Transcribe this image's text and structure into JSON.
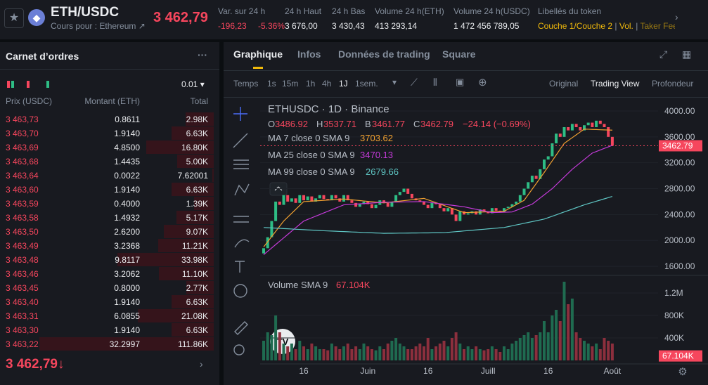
{
  "header": {
    "pair": "ETH/USDC",
    "subtitle": "Cours pour : Ethereum ↗",
    "price": "3 462,79",
    "stats": [
      {
        "label": "Var. sur 24 h",
        "value": "-196,23",
        "extra": "-5.36%"
      },
      {
        "label": "24 h Haut",
        "value": "3 676,00"
      },
      {
        "label": "24 h Bas",
        "value": "3 430,43"
      },
      {
        "label": "Volume 24 h(ETH)",
        "value": "413 293,14"
      },
      {
        "label": "Volume 24 h(USDC)",
        "value": "1 472 456 789,05"
      }
    ],
    "token_label": "Libellés du token",
    "tokens": [
      "Couche 1/Couche 2",
      "Vol.",
      "Taker Fee"
    ]
  },
  "order_book": {
    "title": "Carnet d’ordres",
    "tick_size": "0.01",
    "columns": [
      "Prix (USDC)",
      "Montant (ETH)",
      "Total"
    ],
    "rows": [
      [
        "3 463,73",
        "0.8611",
        "2.98K"
      ],
      [
        "3 463,70",
        "1.9140",
        "6.63K"
      ],
      [
        "3 463,69",
        "4.8500",
        "16.80K"
      ],
      [
        "3 463,68",
        "1.4435",
        "5.00K"
      ],
      [
        "3 463,64",
        "0.0022",
        "7.62001"
      ],
      [
        "3 463,60",
        "1.9140",
        "6.63K"
      ],
      [
        "3 463,59",
        "0.4000",
        "1.39K"
      ],
      [
        "3 463,58",
        "1.4932",
        "5.17K"
      ],
      [
        "3 463,50",
        "2.6200",
        "9.07K"
      ],
      [
        "3 463,49",
        "3.2368",
        "11.21K"
      ],
      [
        "3 463,48",
        "9.8117",
        "33.98K"
      ],
      [
        "3 463,46",
        "3.2062",
        "11.10K"
      ],
      [
        "3 463,45",
        "0.8000",
        "2.77K"
      ],
      [
        "3 463,40",
        "1.9140",
        "6.63K"
      ],
      [
        "3 463,31",
        "6.0855",
        "21.08K"
      ],
      [
        "3 463,30",
        "1.9140",
        "6.63K"
      ],
      [
        "3 463,22",
        "32.2997",
        "111.86K"
      ]
    ],
    "last_price": "3 462,79↓"
  },
  "tabs": [
    "Graphique",
    "Infos",
    "Données de trading",
    "Square"
  ],
  "toolbar": {
    "time_label": "Temps",
    "intervals": [
      "1s",
      "15m",
      "1h",
      "4h",
      "1J",
      "1sem."
    ],
    "views": [
      "Original",
      "Trading View",
      "Profondeur"
    ]
  },
  "chart_data": {
    "type": "candlestick",
    "title": "ETHUSDC · 1D · Binance",
    "ohlc_legend": [
      {
        "label": "O",
        "value": "3486.92"
      },
      {
        "label": "H",
        "value": "3537.71"
      },
      {
        "label": "B",
        "value": "3461.77"
      },
      {
        "label": "C",
        "value": "3462.79"
      }
    ],
    "change_label": "−24.14 (−0.69%)",
    "up_color": "#2ebd85",
    "down_color": "#f6465d",
    "volume_up_color": "#1f6b50",
    "volume_down_color": "#8c2f3d",
    "categories": [
      null,
      null,
      null,
      null,
      null,
      null,
      null,
      null,
      null,
      null,
      "16",
      null,
      null,
      null,
      null,
      null,
      null,
      null,
      null,
      null,
      null,
      null,
      null,
      null,
      null,
      null,
      "Juin",
      null,
      null,
      null,
      null,
      null,
      null,
      null,
      null,
      null,
      null,
      null,
      null,
      null,
      null,
      "16",
      null,
      null,
      null,
      null,
      null,
      null,
      null,
      null,
      null,
      null,
      null,
      null,
      null,
      null,
      "Juill",
      null,
      null,
      null,
      null,
      null,
      null,
      null,
      null,
      null,
      null,
      null,
      null,
      null,
      null,
      "16",
      null,
      null,
      null,
      null,
      null,
      null,
      null,
      null,
      null,
      null,
      null,
      null,
      null,
      null,
      null,
      "Août"
    ],
    "open": [
      1800,
      1880,
      2050,
      2300,
      2600,
      2550,
      2700,
      2600,
      2650,
      2580,
      2700,
      2620,
      2680,
      2600,
      2650,
      2700,
      2640,
      2620,
      2700,
      2650,
      2600,
      2700,
      2620,
      2580,
      2520,
      2560,
      2600,
      2560,
      2500,
      2550,
      2620,
      2580,
      2520,
      2600,
      2700,
      2750,
      2800,
      2720,
      2650,
      2620,
      2600,
      2550,
      2500,
      2580,
      2560,
      2500,
      2450,
      2500,
      2400,
      2300,
      2450,
      2400,
      2420,
      2450,
      2400,
      2480,
      2450,
      2420,
      2500,
      2460,
      2440,
      2500,
      2520,
      2560,
      2600,
      2700,
      2800,
      2900,
      3000,
      2950,
      3100,
      3250,
      3300,
      3500,
      3650,
      3600,
      3750,
      3700,
      3800,
      3750,
      3700,
      3780,
      3820,
      3750,
      3850,
      3800,
      3750,
      3600
    ],
    "close": [
      1880,
      2050,
      2300,
      2600,
      2550,
      2700,
      2600,
      2650,
      2580,
      2700,
      2620,
      2680,
      2600,
      2650,
      2700,
      2640,
      2620,
      2700,
      2650,
      2600,
      2700,
      2620,
      2580,
      2520,
      2560,
      2600,
      2560,
      2500,
      2550,
      2620,
      2580,
      2520,
      2600,
      2700,
      2750,
      2800,
      2720,
      2650,
      2620,
      2600,
      2550,
      2500,
      2580,
      2560,
      2500,
      2450,
      2500,
      2400,
      2300,
      2450,
      2400,
      2420,
      2450,
      2400,
      2480,
      2450,
      2420,
      2500,
      2460,
      2440,
      2500,
      2520,
      2560,
      2600,
      2700,
      2800,
      2900,
      3000,
      2950,
      3100,
      3250,
      3300,
      3500,
      3650,
      3600,
      3750,
      3700,
      3800,
      3750,
      3700,
      3780,
      3820,
      3750,
      3850,
      3800,
      3750,
      3600,
      3463
    ],
    "volume": [
      350000,
      500000,
      450000,
      800000,
      500000,
      300000,
      250000,
      300000,
      200000,
      350000,
      250000,
      200000,
      300000,
      250000,
      200000,
      200000,
      180000,
      300000,
      250000,
      200000,
      250000,
      300000,
      200000,
      250000,
      200000,
      300000,
      250000,
      200000,
      180000,
      250000,
      200000,
      300000,
      350000,
      400000,
      300000,
      250000,
      200000,
      200000,
      250000,
      300000,
      250000,
      400000,
      200000,
      250000,
      300000,
      350000,
      250000,
      400000,
      500000,
      300000,
      200000,
      250000,
      200000,
      250000,
      200000,
      180000,
      200000,
      250000,
      200000,
      150000,
      250000,
      200000,
      300000,
      350000,
      400000,
      450000,
      500000,
      400000,
      450000,
      500000,
      700000,
      500000,
      800000,
      900000,
      700000,
      1400000,
      1000000,
      1100000,
      500000,
      400000,
      350000,
      300000,
      250000,
      300000,
      200000,
      400000,
      350000,
      300000
    ],
    "series": [
      {
        "name": "MA 7 close 0 SMA 9",
        "legend_value": "3703.62",
        "color": "#f0a030",
        "values": [
          1900,
          1980,
          2060,
          2140,
          2220,
          2300,
          2360,
          2420,
          2480,
          2540,
          2600,
          2604,
          2608,
          2612,
          2616,
          2620,
          2624,
          2628,
          2632,
          2636,
          2640,
          2634,
          2628,
          2622,
          2616,
          2610,
          2604,
          2598,
          2592,
          2586,
          2580,
          2587,
          2594,
          2601,
          2608,
          2615,
          2622,
          2629,
          2636,
          2643,
          2650,
          2628,
          2606,
          2584,
          2562,
          2540,
          2518,
          2496,
          2474,
          2452,
          2430,
          2432,
          2434,
          2436,
          2438,
          2440,
          2442,
          2444,
          2446,
          2448,
          2450,
          2484,
          2518,
          2552,
          2586,
          2620,
          2706,
          2792,
          2878,
          2964,
          3050,
          3140,
          3230,
          3320,
          3410,
          3500,
          3544,
          3588,
          3632,
          3676,
          3720,
          3718,
          3715,
          3713,
          3710,
          3708,
          3706,
          3704
        ]
      },
      {
        "name": "MA 25 close 0 SMA 9",
        "legend_value": "3470.13",
        "color": "#c33ad8",
        "values": [
          1780,
          1832,
          1884,
          1936,
          1988,
          2040,
          2092,
          2144,
          2196,
          2248,
          2300,
          2325,
          2350,
          2375,
          2400,
          2425,
          2450,
          2475,
          2500,
          2525,
          2550,
          2554,
          2558,
          2562,
          2566,
          2570,
          2574,
          2578,
          2582,
          2586,
          2590,
          2591,
          2592,
          2593,
          2594,
          2595,
          2596,
          2597,
          2598,
          2599,
          2600,
          2592,
          2584,
          2576,
          2568,
          2560,
          2552,
          2544,
          2536,
          2528,
          2520,
          2507,
          2494,
          2481,
          2468,
          2455,
          2442,
          2430,
          2432,
          2434,
          2436,
          2438,
          2440,
          2464,
          2488,
          2512,
          2536,
          2560,
          2608,
          2656,
          2704,
          2752,
          2800,
          2860,
          2920,
          2980,
          3040,
          3100,
          3150,
          3200,
          3250,
          3300,
          3350,
          3374,
          3398,
          3422,
          3446,
          3470
        ]
      },
      {
        "name": "MA 99 close 0 SMA 9",
        "legend_value": "2679.66",
        "color": "#5fc6c4",
        "values": [
          2200,
          2197,
          2193,
          2190,
          2187,
          2183,
          2180,
          2177,
          2173,
          2170,
          2167,
          2163,
          2160,
          2157,
          2153,
          2150,
          2147,
          2145,
          2142,
          2139,
          2137,
          2134,
          2131,
          2129,
          2126,
          2123,
          2121,
          2118,
          2115,
          2113,
          2110,
          2111,
          2111,
          2112,
          2113,
          2113,
          2114,
          2115,
          2115,
          2116,
          2117,
          2117,
          2118,
          2119,
          2119,
          2120,
          2125,
          2131,
          2136,
          2141,
          2147,
          2152,
          2157,
          2163,
          2168,
          2173,
          2179,
          2184,
          2189,
          2195,
          2200,
          2213,
          2226,
          2239,
          2252,
          2265,
          2278,
          2291,
          2304,
          2317,
          2330,
          2352,
          2374,
          2396,
          2418,
          2440,
          2462,
          2484,
          2506,
          2528,
          2550,
          2569,
          2587,
          2606,
          2624,
          2643,
          2661,
          2680
        ]
      }
    ],
    "ylim": [
      1460,
      4195
    ],
    "yticks": [
      {
        "value": 1600,
        "label": "1600.00"
      },
      {
        "value": 2000,
        "label": "2000.00"
      },
      {
        "value": 2400,
        "label": "2400.00"
      },
      {
        "value": 2800,
        "label": "2800.00"
      },
      {
        "value": 3200,
        "label": "3200.00"
      },
      {
        "value": 3600,
        "label": "3600.00"
      },
      {
        "value": 4000,
        "label": "4000.00"
      }
    ],
    "last_price": {
      "value": 3462.79,
      "label": "3462.79"
    },
    "volume_label": "Volume SMA 9",
    "volume_sma": {
      "value": 67104,
      "label": "67.104K"
    },
    "y2lim": [
      0,
      1475000
    ],
    "y2ticks": [
      {
        "value": 400000,
        "label": "400K"
      },
      {
        "value": 800000,
        "label": "800K"
      },
      {
        "value": 1200000,
        "label": "1.2M"
      }
    ]
  }
}
